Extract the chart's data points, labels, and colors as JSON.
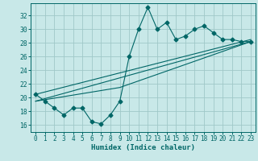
{
  "title": "",
  "xlabel": "Humidex (Indice chaleur)",
  "bg_color": "#c8e8e8",
  "grid_color": "#a0c8c8",
  "line_color": "#006666",
  "xlim": [
    -0.5,
    23.5
  ],
  "ylim": [
    15.0,
    33.8
  ],
  "yticks": [
    16,
    18,
    20,
    22,
    24,
    26,
    28,
    30,
    32
  ],
  "xticks": [
    0,
    1,
    2,
    3,
    4,
    5,
    6,
    7,
    8,
    9,
    10,
    11,
    12,
    13,
    14,
    15,
    16,
    17,
    18,
    19,
    20,
    21,
    22,
    23
  ],
  "series1_x": [
    0,
    1,
    2,
    3,
    4,
    5,
    6,
    7,
    8,
    9,
    10,
    11,
    12,
    13,
    14,
    15,
    16,
    17,
    18,
    19,
    20,
    21,
    22,
    23
  ],
  "series1_y": [
    20.5,
    19.5,
    18.5,
    17.5,
    18.5,
    18.5,
    16.5,
    16.2,
    17.5,
    19.5,
    26.0,
    30.0,
    33.2,
    30.0,
    31.0,
    28.5,
    29.0,
    30.0,
    30.5,
    29.5,
    28.5,
    28.5,
    28.2,
    28.2
  ],
  "series2_x": [
    0,
    23
  ],
  "series2_y": [
    19.5,
    28.2
  ],
  "series3_x": [
    0,
    23
  ],
  "series3_y": [
    20.5,
    28.5
  ],
  "series4_x": [
    0,
    9,
    23
  ],
  "series4_y": [
    19.5,
    21.5,
    28.2
  ],
  "xlabel_fontsize": 6.5,
  "tick_fontsize": 5.5,
  "lw": 0.8,
  "ms": 2.5
}
